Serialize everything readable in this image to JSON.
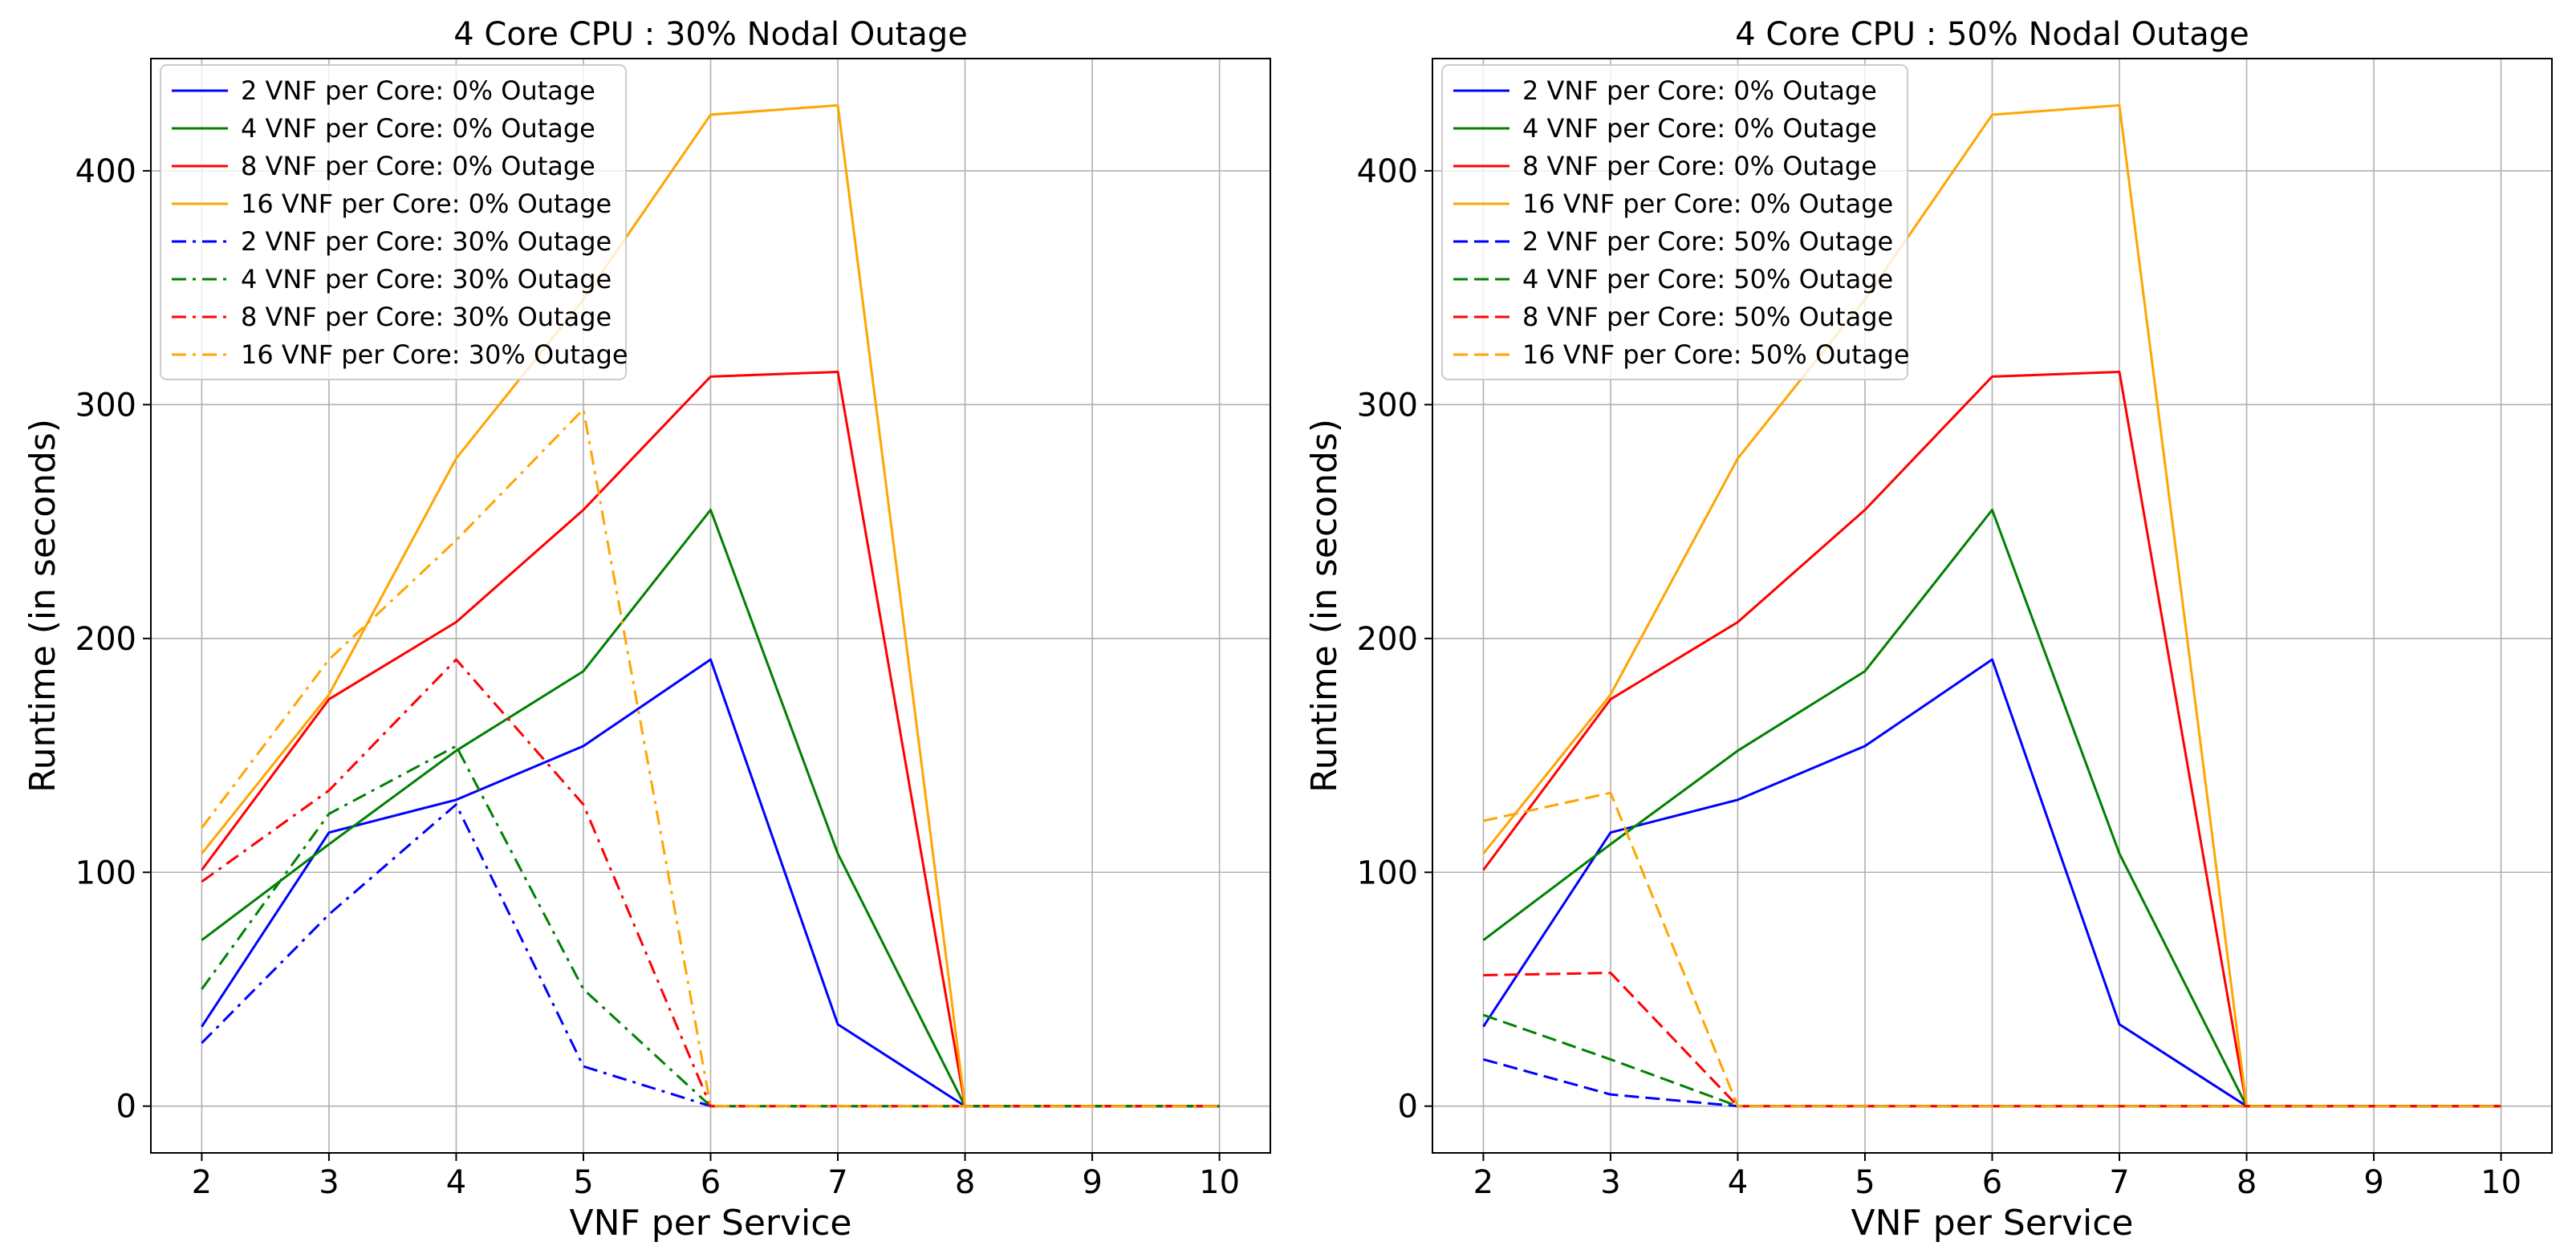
{
  "chart_data": [
    {
      "type": "line",
      "title": "4 Core CPU : 30% Nodal Outage",
      "xlabel": "VNF per Service",
      "ylabel": "Runtime (in seconds)",
      "xlim": [
        1.6,
        10.4
      ],
      "ylim": [
        -20,
        448
      ],
      "xticks": [
        2,
        3,
        4,
        5,
        6,
        7,
        8,
        9,
        10
      ],
      "yticks": [
        0,
        100,
        200,
        300,
        400
      ],
      "grid": true,
      "legend_position": "top-left",
      "x": [
        2,
        3,
        4,
        5,
        6,
        7,
        8,
        9,
        10
      ],
      "series": [
        {
          "name": "2 VNF per Core: 0% Outage",
          "color": "#0000ff",
          "style": "solid",
          "values": [
            34,
            117,
            131,
            154,
            191,
            35,
            0,
            0,
            0
          ]
        },
        {
          "name": "4 VNF per Core: 0% Outage",
          "color": "#008000",
          "style": "solid",
          "values": [
            71,
            112,
            152,
            186,
            255,
            108,
            0,
            0,
            0
          ]
        },
        {
          "name": "8 VNF per Core: 0% Outage",
          "color": "#ff0000",
          "style": "solid",
          "values": [
            101,
            174,
            207,
            255,
            312,
            314,
            0,
            0,
            0
          ]
        },
        {
          "name": "16 VNF per Core: 0% Outage",
          "color": "#ffa500",
          "style": "solid",
          "values": [
            108,
            176,
            277,
            345,
            424,
            428,
            0,
            0,
            0
          ]
        },
        {
          "name": "2 VNF per Core: 30% Outage",
          "color": "#0000ff",
          "style": "dashdot",
          "values": [
            27,
            82,
            129,
            17,
            0,
            0,
            0,
            0,
            0
          ]
        },
        {
          "name": "4 VNF per Core: 30% Outage",
          "color": "#008000",
          "style": "dashdot",
          "values": [
            50,
            125,
            154,
            50,
            0,
            0,
            0,
            0,
            0
          ]
        },
        {
          "name": "8 VNF per Core: 30% Outage",
          "color": "#ff0000",
          "style": "dashdot",
          "values": [
            96,
            135,
            191,
            129,
            0,
            0,
            0,
            0,
            0
          ]
        },
        {
          "name": "16 VNF per Core: 30% Outage",
          "color": "#ffa500",
          "style": "dashdot",
          "values": [
            119,
            191,
            242,
            298,
            0,
            0,
            0,
            0,
            0
          ]
        }
      ]
    },
    {
      "type": "line",
      "title": "4 Core CPU : 50% Nodal Outage",
      "xlabel": "VNF per Service",
      "ylabel": "Runtime (in seconds)",
      "xlim": [
        1.6,
        10.4
      ],
      "ylim": [
        -20,
        448
      ],
      "xticks": [
        2,
        3,
        4,
        5,
        6,
        7,
        8,
        9,
        10
      ],
      "yticks": [
        0,
        100,
        200,
        300,
        400
      ],
      "grid": true,
      "legend_position": "top-left",
      "x": [
        2,
        3,
        4,
        5,
        6,
        7,
        8,
        9,
        10
      ],
      "series": [
        {
          "name": "2 VNF per Core: 0% Outage",
          "color": "#0000ff",
          "style": "solid",
          "values": [
            34,
            117,
            131,
            154,
            191,
            35,
            0,
            0,
            0
          ]
        },
        {
          "name": "4 VNF per Core: 0% Outage",
          "color": "#008000",
          "style": "solid",
          "values": [
            71,
            112,
            152,
            186,
            255,
            108,
            0,
            0,
            0
          ]
        },
        {
          "name": "8 VNF per Core: 0% Outage",
          "color": "#ff0000",
          "style": "solid",
          "values": [
            101,
            174,
            207,
            255,
            312,
            314,
            0,
            0,
            0
          ]
        },
        {
          "name": "16 VNF per Core: 0% Outage",
          "color": "#ffa500",
          "style": "solid",
          "values": [
            108,
            176,
            277,
            345,
            424,
            428,
            0,
            0,
            0
          ]
        },
        {
          "name": "2 VNF per Core: 50% Outage",
          "color": "#0000ff",
          "style": "dashed",
          "values": [
            20,
            5,
            0,
            0,
            0,
            0,
            0,
            0,
            0
          ]
        },
        {
          "name": "4 VNF per Core: 50% Outage",
          "color": "#008000",
          "style": "dashed",
          "values": [
            39,
            20,
            0,
            0,
            0,
            0,
            0,
            0,
            0
          ]
        },
        {
          "name": "8 VNF per Core: 50% Outage",
          "color": "#ff0000",
          "style": "dashed",
          "values": [
            56,
            57,
            0,
            0,
            0,
            0,
            0,
            0,
            0
          ]
        },
        {
          "name": "16 VNF per Core: 50% Outage",
          "color": "#ffa500",
          "style": "dashed",
          "values": [
            122,
            134,
            0,
            0,
            0,
            0,
            0,
            0,
            0
          ]
        }
      ]
    }
  ]
}
